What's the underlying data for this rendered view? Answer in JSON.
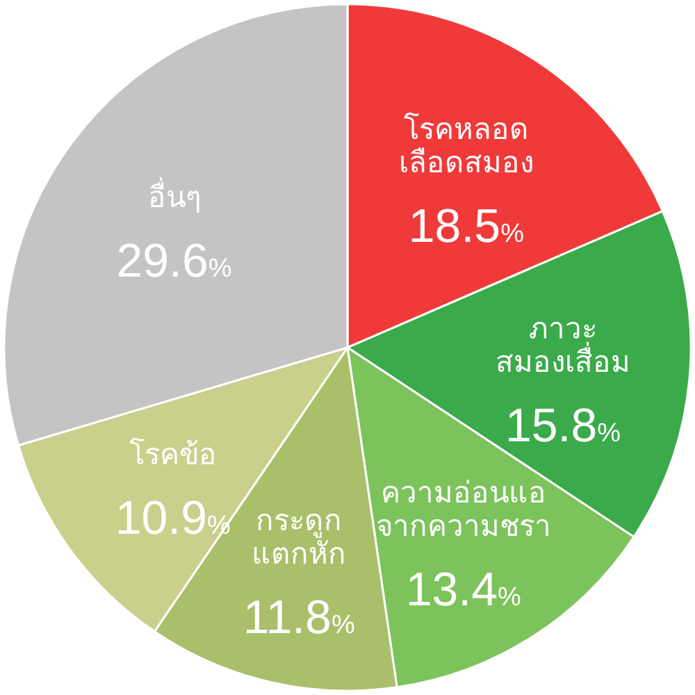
{
  "chart_data": {
    "type": "pie",
    "categories": [
      "โรคหลอด\nเลือดสมอง",
      "ภาวะ\nสมองเสื่อม",
      "ความอ่อนแอ\nจากความชรา",
      "กระดูก\nแตกหัก",
      "โรคข้อ",
      "อื่นๆ"
    ],
    "values": [
      18.5,
      15.8,
      13.4,
      11.8,
      10.9,
      29.6
    ],
    "colors": [
      "#f03a3a",
      "#3aaa4a",
      "#7cc35c",
      "#a9bf6a",
      "#c9d08c",
      "#c4c4c4"
    ],
    "value_labels": [
      "18.5%",
      "15.8%",
      "13.4%",
      "11.8%",
      "10.9%",
      "29.6%"
    ]
  }
}
